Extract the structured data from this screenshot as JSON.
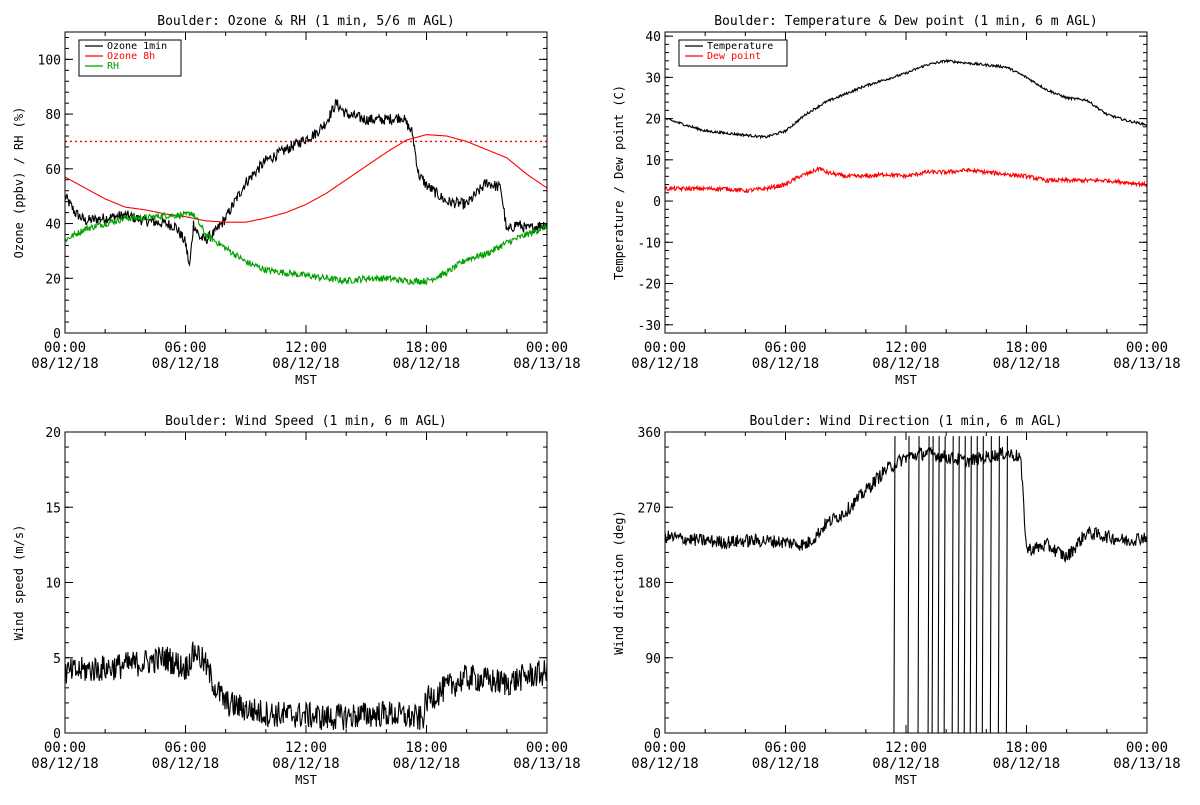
{
  "chart_data": [
    {
      "id": "ozone",
      "type": "line",
      "title": "Boulder: Ozone & RH (1 min, 5/6 m AGL)",
      "xlabel": "MST",
      "ylabel": "Ozone (ppbv) / RH (%)",
      "xlim": [
        0,
        24
      ],
      "ylim": [
        0,
        110
      ],
      "yticks": [
        0,
        20,
        40,
        60,
        80,
        100
      ],
      "xtick_times": [
        "00:00",
        "06:00",
        "12:00",
        "18:00",
        "00:00"
      ],
      "xtick_dates": [
        "08/12/18",
        "08/12/18",
        "08/12/18",
        "08/12/18",
        "08/13/18"
      ],
      "legend_position": "top-left",
      "reference_lines": [
        {
          "y": 70,
          "color": "#ff0000",
          "style": "dotted"
        }
      ],
      "series": [
        {
          "name": "Ozone 1min",
          "color": "#000000",
          "noise": 2.0,
          "x": [
            0,
            0.5,
            1,
            2,
            3,
            4,
            5,
            5.5,
            6,
            6.2,
            6.4,
            6.7,
            7,
            7.5,
            8,
            9,
            10,
            11,
            12,
            12.5,
            13,
            13.5,
            14,
            15,
            16,
            16.8,
            17.3,
            17.6,
            18,
            19,
            20,
            21,
            21.7,
            22,
            22.5,
            23,
            24
          ],
          "y": [
            50,
            44,
            41,
            42,
            43,
            41,
            40,
            39,
            33,
            24,
            40,
            35,
            34,
            37,
            42,
            55,
            63,
            67,
            71,
            73,
            77,
            84,
            80,
            78,
            78,
            79,
            73,
            58,
            54,
            48,
            47,
            55,
            53,
            37,
            40,
            38,
            40
          ]
        },
        {
          "name": "Ozone 8h",
          "color": "#ff0000",
          "noise": 0,
          "x": [
            0,
            1,
            2,
            3,
            4,
            5,
            6,
            7,
            8,
            9,
            10,
            11,
            12,
            13,
            14,
            15,
            16,
            17,
            18,
            19,
            20,
            21,
            22,
            23,
            24
          ],
          "y": [
            57,
            53,
            49,
            46,
            45,
            43.5,
            42.5,
            41,
            40.5,
            40.5,
            42,
            44,
            47,
            51,
            56,
            61,
            66,
            70.5,
            72.5,
            72,
            70,
            67,
            64,
            58,
            53
          ]
        },
        {
          "name": "RH",
          "color": "#00a000",
          "noise": 1.2,
          "x": [
            0,
            1,
            2,
            3,
            4,
            5,
            6,
            6.3,
            6.6,
            7,
            8,
            9,
            10,
            11,
            12,
            13,
            14,
            15,
            16,
            17,
            18,
            19,
            20,
            21,
            22,
            23,
            24
          ],
          "y": [
            34,
            38,
            40,
            42,
            42,
            43,
            43,
            44,
            41,
            36,
            31,
            26,
            23,
            22,
            21,
            20,
            19,
            20,
            20,
            19,
            19,
            22,
            27,
            29,
            33,
            36,
            39
          ]
        }
      ]
    },
    {
      "id": "temp",
      "type": "line",
      "title": "Boulder: Temperature & Dew point (1 min, 6 m AGL)",
      "xlabel": "MST",
      "ylabel": "Temperature / Dew point (C)",
      "xlim": [
        0,
        24
      ],
      "ylim": [
        -32,
        41
      ],
      "yticks": [
        -30,
        -20,
        -10,
        0,
        10,
        20,
        30,
        40
      ],
      "xtick_times": [
        "00:00",
        "06:00",
        "12:00",
        "18:00",
        "00:00"
      ],
      "xtick_dates": [
        "08/12/18",
        "08/12/18",
        "08/12/18",
        "08/12/18",
        "08/13/18"
      ],
      "legend_position": "top-left",
      "reference_lines": [],
      "series": [
        {
          "name": "Temperature",
          "color": "#000000",
          "noise": 0.3,
          "x": [
            0,
            1,
            2,
            3,
            4,
            5,
            6,
            7,
            8,
            9,
            10,
            11,
            12,
            13,
            14,
            15,
            16,
            17,
            18,
            19,
            20,
            21,
            22,
            23,
            24
          ],
          "y": [
            20,
            18.5,
            17,
            16.5,
            16,
            15.5,
            17,
            21,
            24,
            26,
            28,
            29.5,
            31,
            33,
            34,
            33.5,
            33,
            32.5,
            30,
            27,
            25,
            24.5,
            21,
            19.5,
            18.5
          ]
        },
        {
          "name": "Dew point",
          "color": "#ff0000",
          "noise": 0.5,
          "x": [
            0,
            1,
            2,
            3,
            4,
            5,
            6,
            6.7,
            7.3,
            7.7,
            8,
            9,
            10,
            11,
            12,
            13,
            14,
            15,
            16,
            17,
            18,
            19,
            20,
            21,
            22,
            23,
            24
          ],
          "y": [
            3,
            3,
            3,
            3,
            2.5,
            3,
            4,
            6,
            7,
            8,
            7,
            6,
            6,
            6.5,
            6,
            7,
            7,
            7.5,
            7,
            6.5,
            6,
            5,
            5,
            5,
            5,
            4.5,
            4
          ]
        }
      ]
    },
    {
      "id": "wspd",
      "type": "line",
      "title": "Boulder: Wind Speed (1 min, 6 m AGL)",
      "xlabel": "MST",
      "ylabel": "Wind speed (m/s)",
      "xlim": [
        0,
        24
      ],
      "ylim": [
        0,
        20
      ],
      "yticks": [
        0,
        5,
        10,
        15,
        20
      ],
      "xtick_times": [
        "00:00",
        "06:00",
        "12:00",
        "18:00",
        "00:00"
      ],
      "xtick_dates": [
        "08/12/18",
        "08/12/18",
        "08/12/18",
        "08/12/18",
        "08/13/18"
      ],
      "reference_lines": [],
      "series": [
        {
          "name": "",
          "color": "#000000",
          "noise": 0.9,
          "x": [
            0,
            1,
            2,
            3,
            4,
            5,
            6,
            6.5,
            7,
            7.5,
            8,
            9,
            10,
            11,
            12,
            13,
            14,
            15,
            16,
            17,
            17.8,
            18,
            19,
            20,
            21,
            22,
            23,
            24
          ],
          "y": [
            4,
            4.2,
            4.3,
            4.5,
            4.7,
            5,
            4.3,
            5.5,
            4.5,
            3,
            2,
            1.6,
            1.3,
            1.2,
            1.2,
            1.0,
            1.1,
            1.2,
            1.3,
            1.1,
            0.9,
            2.2,
            3,
            3.7,
            3.5,
            3.3,
            3.8,
            4.0
          ]
        }
      ]
    },
    {
      "id": "wdir",
      "type": "line",
      "title": "Boulder: Wind Direction (1 min, 6 m AGL)",
      "xlabel": "MST",
      "ylabel": "Wind direction (deg)",
      "xlim": [
        0,
        24
      ],
      "ylim": [
        0,
        360
      ],
      "yticks": [
        0,
        90,
        180,
        270,
        360
      ],
      "xtick_times": [
        "00:00",
        "06:00",
        "12:00",
        "18:00",
        "00:00"
      ],
      "xtick_dates": [
        "08/12/18",
        "08/12/18",
        "08/12/18",
        "08/12/18",
        "08/13/18"
      ],
      "reference_lines": [],
      "series": [
        {
          "name": "",
          "color": "#000000",
          "noise": 8,
          "x": [
            0,
            1,
            2,
            3,
            4,
            5,
            6,
            7,
            7.5,
            8,
            9,
            10,
            11,
            12,
            13,
            14,
            15,
            16,
            17,
            17.7,
            18,
            18.3,
            19,
            20,
            21,
            22,
            23,
            24
          ],
          "y": [
            235,
            232,
            230,
            228,
            230,
            230,
            228,
            225,
            235,
            250,
            265,
            290,
            315,
            330,
            335,
            330,
            325,
            330,
            335,
            330,
            220,
            220,
            225,
            210,
            240,
            235,
            230,
            235
          ]
        }
      ],
      "spikes_to_zero_hours": [
        11.4,
        12.1,
        12.6,
        13.1,
        13.3,
        13.6,
        13.9,
        14.3,
        14.6,
        14.9,
        15.2,
        15.5,
        15.8,
        16.2,
        16.6,
        17.0
      ]
    }
  ]
}
